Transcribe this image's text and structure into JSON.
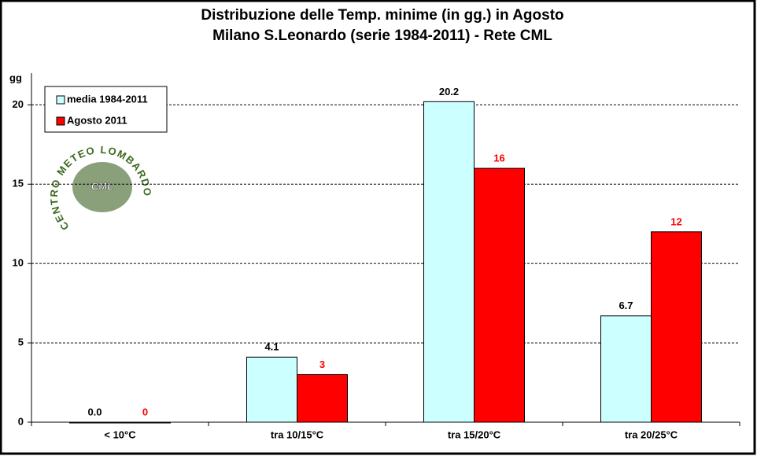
{
  "chart_data": {
    "type": "bar",
    "title": "Distribuzione  delle  Temp.  minime  (in  gg.)  in  Agosto",
    "subtitle": "Milano  S.Leonardo  (serie  1984-2011)  - Rete  CML",
    "y_label": "gg",
    "categories": [
      "< 10°C",
      "tra 10/15°C",
      "tra 15/20°C",
      "tra 20/25°C"
    ],
    "series": [
      {
        "name": "media 1984-2011",
        "color": "#ccffff",
        "label_color": "#000000",
        "values": [
          0,
          4.1,
          20.2,
          6.7
        ],
        "value_labels": [
          "0.0",
          "4.1",
          "20.2",
          "6.7"
        ]
      },
      {
        "name": "Agosto 2011",
        "color": "#ff0000",
        "label_color": "#ff0000",
        "values": [
          0,
          3,
          16,
          12
        ]
      }
    ],
    "ylim": [
      0,
      22
    ],
    "yticks": [
      0,
      5,
      10,
      15,
      20
    ],
    "grid": true,
    "legend": "top-left",
    "logo": {
      "ring": "CENTRO METEO LOMBARDO",
      "center": "CML"
    }
  }
}
